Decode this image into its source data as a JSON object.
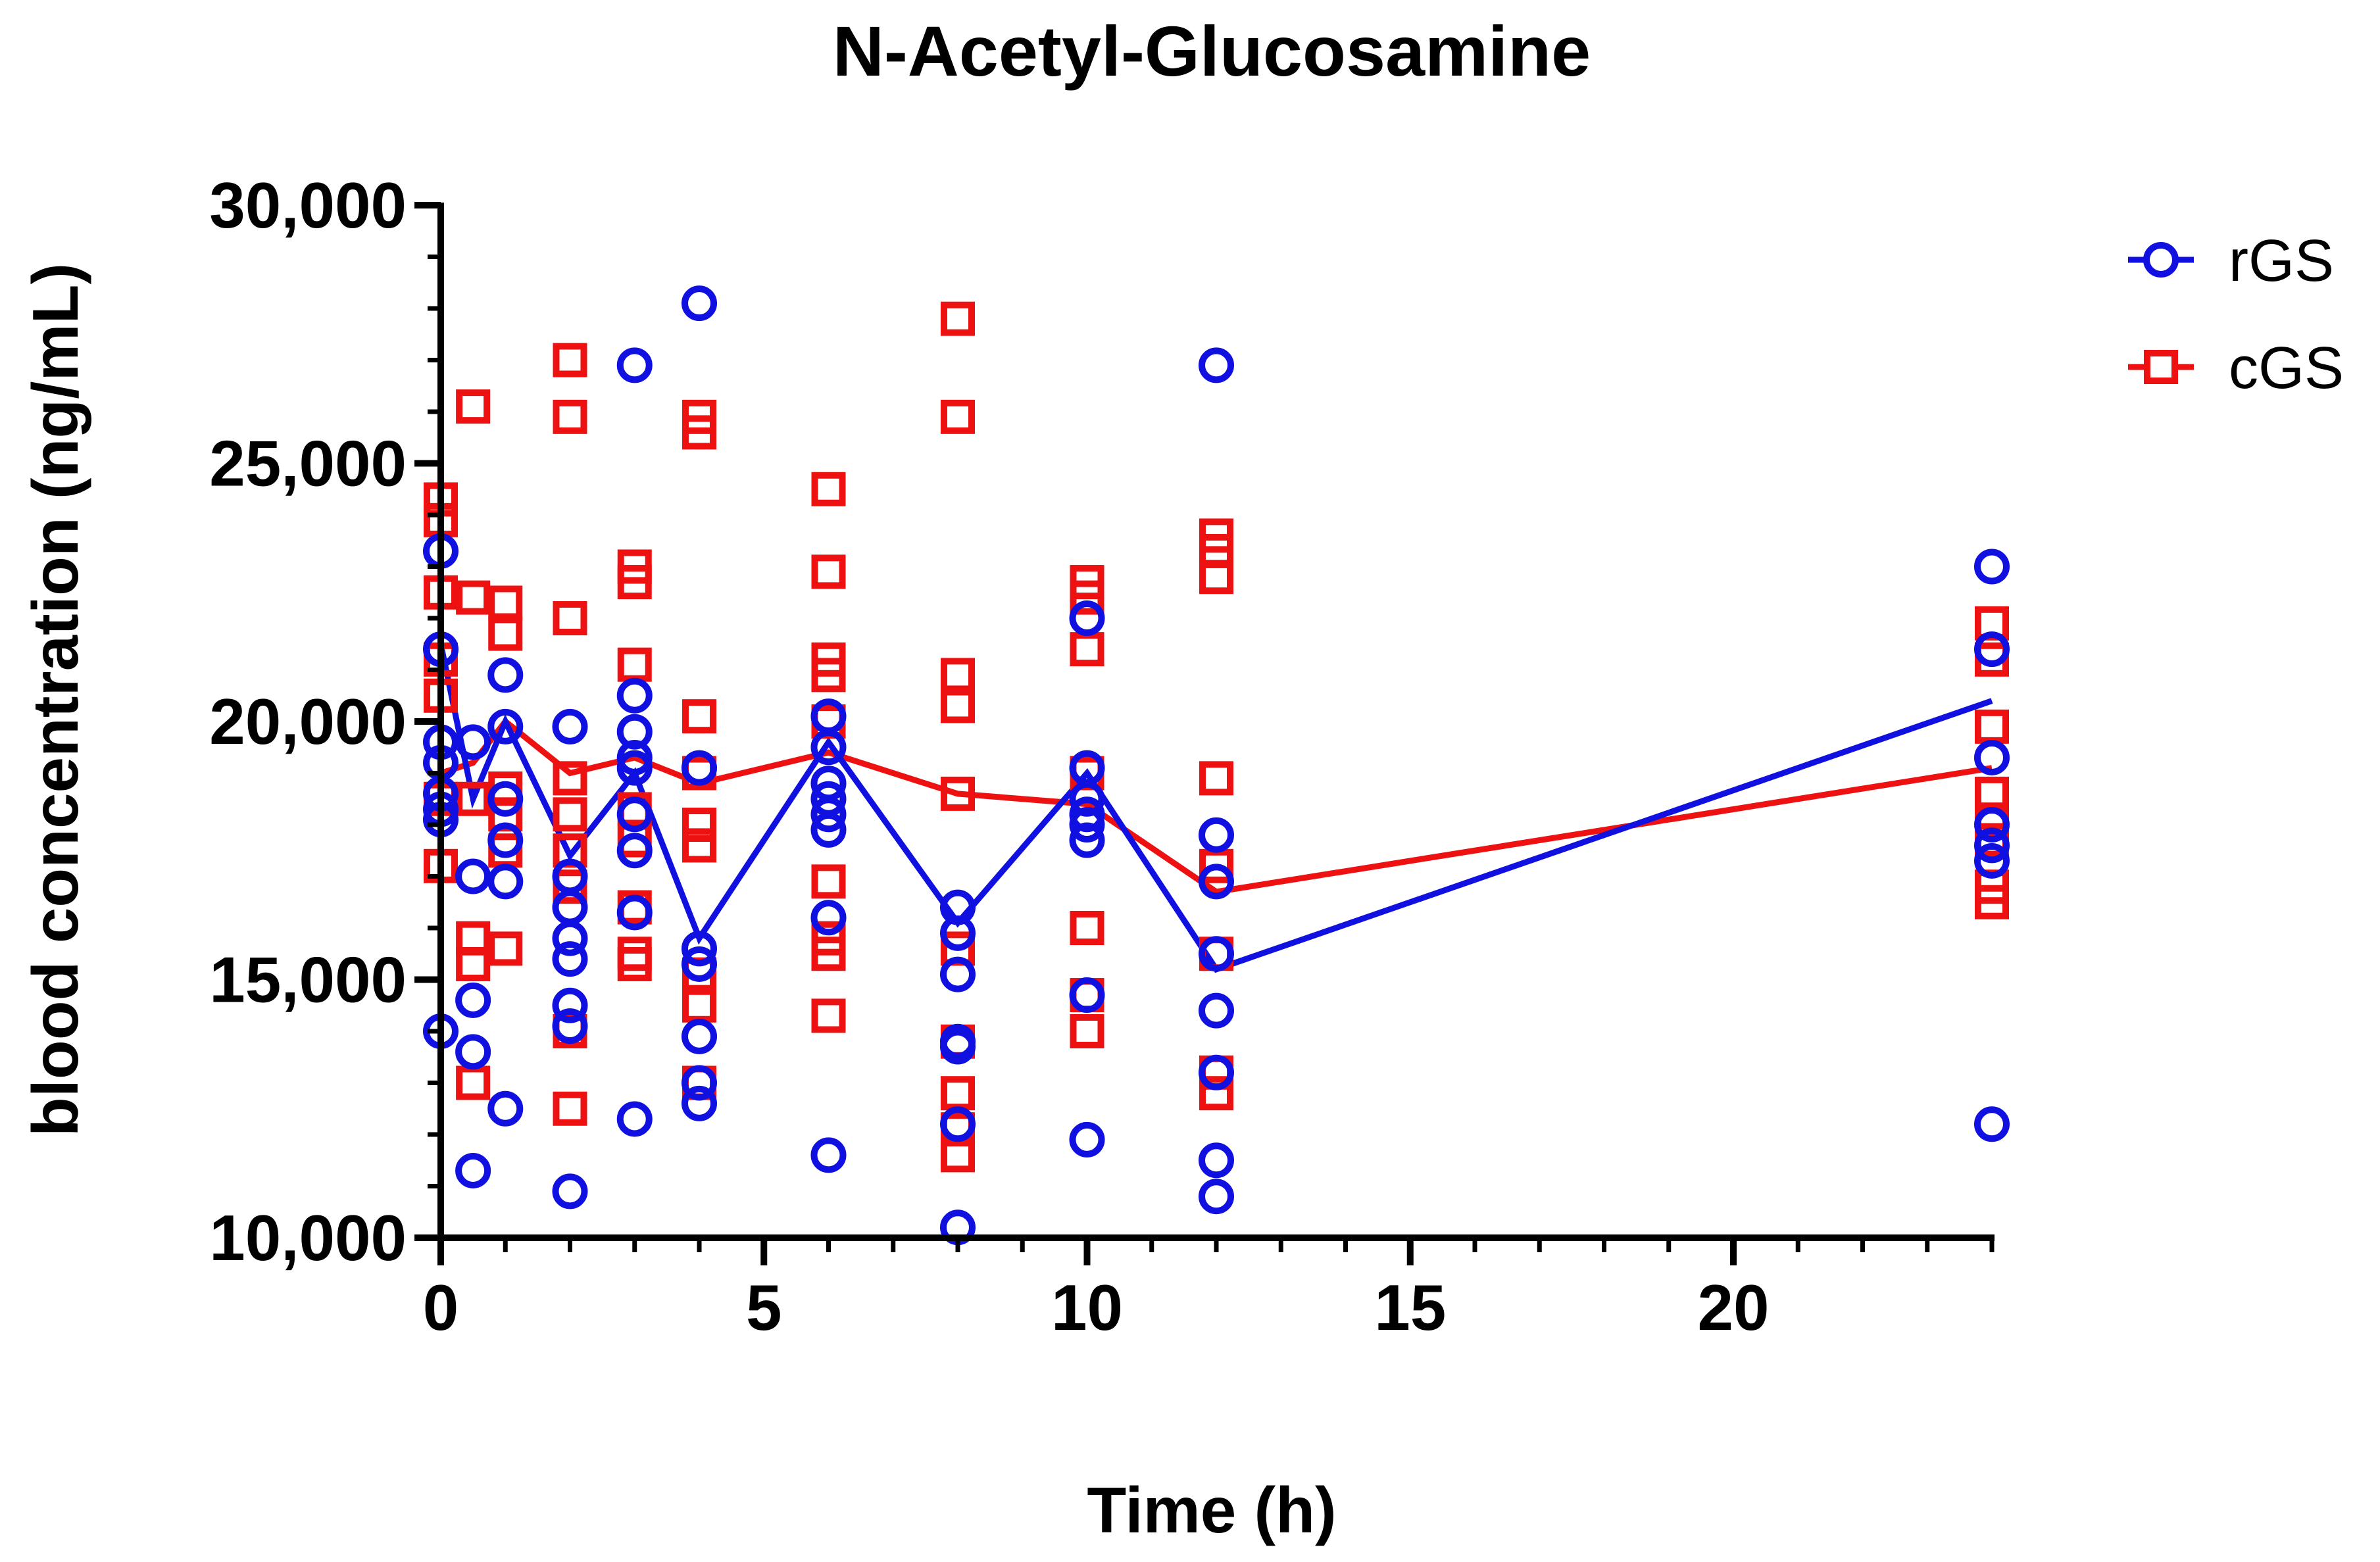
{
  "chart_data": {
    "type": "scatter",
    "title": "N-Acetyl-Glucosamine",
    "xlabel": "Time (h)",
    "ylabel": "blood concentration (ng/mL)",
    "xlim": [
      0,
      24
    ],
    "ylim": [
      10000,
      30000
    ],
    "x_ticks": [
      0,
      5,
      10,
      15,
      20
    ],
    "x_tick_labels": [
      "0",
      "5",
      "10",
      "15",
      "20"
    ],
    "y_ticks": [
      10000,
      15000,
      20000,
      25000,
      30000
    ],
    "y_tick_labels": [
      "10,000",
      "15,000",
      "20,000",
      "25,000",
      "30,000"
    ],
    "legend_position": "top-right",
    "grid": false,
    "series": [
      {
        "name": "rGS",
        "color": "#1010e0",
        "marker": "circle",
        "mean_line": [
          {
            "x": 0,
            "y": 21500
          },
          {
            "x": 0.5,
            "y": 18500
          },
          {
            "x": 1,
            "y": 20000
          },
          {
            "x": 2,
            "y": 17400
          },
          {
            "x": 3,
            "y": 19000
          },
          {
            "x": 4,
            "y": 15800
          },
          {
            "x": 6,
            "y": 19600
          },
          {
            "x": 8,
            "y": 16100
          },
          {
            "x": 10,
            "y": 19000
          },
          {
            "x": 12,
            "y": 15200
          },
          {
            "x": 24,
            "y": 20400
          }
        ],
        "points": [
          {
            "x": 0,
            "y": 23300
          },
          {
            "x": 0,
            "y": 21400
          },
          {
            "x": 0,
            "y": 19600
          },
          {
            "x": 0,
            "y": 19200
          },
          {
            "x": 0,
            "y": 18600
          },
          {
            "x": 0,
            "y": 18300
          },
          {
            "x": 0,
            "y": 18100
          },
          {
            "x": 0,
            "y": 14000
          },
          {
            "x": 0.5,
            "y": 19600
          },
          {
            "x": 0.5,
            "y": 17000
          },
          {
            "x": 0.5,
            "y": 14600
          },
          {
            "x": 0.5,
            "y": 13600
          },
          {
            "x": 0.5,
            "y": 11300
          },
          {
            "x": 1,
            "y": 20900
          },
          {
            "x": 1,
            "y": 19900
          },
          {
            "x": 1,
            "y": 18500
          },
          {
            "x": 1,
            "y": 17700
          },
          {
            "x": 1,
            "y": 16900
          },
          {
            "x": 1,
            "y": 12500
          },
          {
            "x": 2,
            "y": 19900
          },
          {
            "x": 2,
            "y": 17000
          },
          {
            "x": 2,
            "y": 16400
          },
          {
            "x": 2,
            "y": 15800
          },
          {
            "x": 2,
            "y": 15400
          },
          {
            "x": 2,
            "y": 14500
          },
          {
            "x": 2,
            "y": 14100
          },
          {
            "x": 2,
            "y": 10900
          },
          {
            "x": 3,
            "y": 26900
          },
          {
            "x": 3,
            "y": 20500
          },
          {
            "x": 3,
            "y": 19800
          },
          {
            "x": 3,
            "y": 19300
          },
          {
            "x": 3,
            "y": 19100
          },
          {
            "x": 3,
            "y": 18200
          },
          {
            "x": 3,
            "y": 17500
          },
          {
            "x": 3,
            "y": 16300
          },
          {
            "x": 3,
            "y": 12300
          },
          {
            "x": 4,
            "y": 28100
          },
          {
            "x": 4,
            "y": 19100
          },
          {
            "x": 4,
            "y": 15600
          },
          {
            "x": 4,
            "y": 15300
          },
          {
            "x": 4,
            "y": 13900
          },
          {
            "x": 4,
            "y": 13000
          },
          {
            "x": 4,
            "y": 12600
          },
          {
            "x": 6,
            "y": 20100
          },
          {
            "x": 6,
            "y": 19500
          },
          {
            "x": 6,
            "y": 18800
          },
          {
            "x": 6,
            "y": 18500
          },
          {
            "x": 6,
            "y": 18200
          },
          {
            "x": 6,
            "y": 17900
          },
          {
            "x": 6,
            "y": 16200
          },
          {
            "x": 6,
            "y": 11600
          },
          {
            "x": 8,
            "y": 16400
          },
          {
            "x": 8,
            "y": 15900
          },
          {
            "x": 8,
            "y": 15100
          },
          {
            "x": 8,
            "y": 13800
          },
          {
            "x": 8,
            "y": 13700
          },
          {
            "x": 8,
            "y": 12200
          },
          {
            "x": 8,
            "y": 10200
          },
          {
            "x": 10,
            "y": 22000
          },
          {
            "x": 10,
            "y": 19100
          },
          {
            "x": 10,
            "y": 18500
          },
          {
            "x": 10,
            "y": 18200
          },
          {
            "x": 10,
            "y": 18000
          },
          {
            "x": 10,
            "y": 17700
          },
          {
            "x": 10,
            "y": 14700
          },
          {
            "x": 10,
            "y": 11900
          },
          {
            "x": 12,
            "y": 26900
          },
          {
            "x": 12,
            "y": 17800
          },
          {
            "x": 12,
            "y": 16900
          },
          {
            "x": 12,
            "y": 15500
          },
          {
            "x": 12,
            "y": 14400
          },
          {
            "x": 12,
            "y": 13200
          },
          {
            "x": 12,
            "y": 11500
          },
          {
            "x": 12,
            "y": 10800
          },
          {
            "x": 24,
            "y": 23000
          },
          {
            "x": 24,
            "y": 21400
          },
          {
            "x": 24,
            "y": 19300
          },
          {
            "x": 24,
            "y": 18000
          },
          {
            "x": 24,
            "y": 17600
          },
          {
            "x": 24,
            "y": 17300
          },
          {
            "x": 24,
            "y": 12200
          }
        ]
      },
      {
        "name": "cGS",
        "color": "#ee1111",
        "marker": "square",
        "mean_line": [
          {
            "x": 0,
            "y": 19000
          },
          {
            "x": 0.5,
            "y": 19200
          },
          {
            "x": 1,
            "y": 20000
          },
          {
            "x": 2,
            "y": 19000
          },
          {
            "x": 3,
            "y": 19300
          },
          {
            "x": 4,
            "y": 18800
          },
          {
            "x": 6,
            "y": 19400
          },
          {
            "x": 8,
            "y": 18600
          },
          {
            "x": 10,
            "y": 18400
          },
          {
            "x": 12,
            "y": 16700
          },
          {
            "x": 24,
            "y": 19100
          }
        ],
        "points": [
          {
            "x": 0,
            "y": 24300
          },
          {
            "x": 0,
            "y": 23900
          },
          {
            "x": 0,
            "y": 22500
          },
          {
            "x": 0,
            "y": 21200
          },
          {
            "x": 0,
            "y": 20500
          },
          {
            "x": 0,
            "y": 18500
          },
          {
            "x": 0,
            "y": 17200
          },
          {
            "x": 0.5,
            "y": 26100
          },
          {
            "x": 0.5,
            "y": 22400
          },
          {
            "x": 0.5,
            "y": 18500
          },
          {
            "x": 0.5,
            "y": 15800
          },
          {
            "x": 0.5,
            "y": 15300
          },
          {
            "x": 0.5,
            "y": 13000
          },
          {
            "x": 1,
            "y": 22300
          },
          {
            "x": 1,
            "y": 21700
          },
          {
            "x": 1,
            "y": 18700
          },
          {
            "x": 1,
            "y": 18200
          },
          {
            "x": 1,
            "y": 17500
          },
          {
            "x": 1,
            "y": 15600
          },
          {
            "x": 2,
            "y": 27000
          },
          {
            "x": 2,
            "y": 25900
          },
          {
            "x": 2,
            "y": 22000
          },
          {
            "x": 2,
            "y": 18900
          },
          {
            "x": 2,
            "y": 18200
          },
          {
            "x": 2,
            "y": 17500
          },
          {
            "x": 2,
            "y": 16800
          },
          {
            "x": 2,
            "y": 14000
          },
          {
            "x": 2,
            "y": 12500
          },
          {
            "x": 3,
            "y": 23000
          },
          {
            "x": 3,
            "y": 22700
          },
          {
            "x": 3,
            "y": 21100
          },
          {
            "x": 3,
            "y": 18300
          },
          {
            "x": 3,
            "y": 17700
          },
          {
            "x": 3,
            "y": 16400
          },
          {
            "x": 3,
            "y": 15500
          },
          {
            "x": 3,
            "y": 15300
          },
          {
            "x": 4,
            "y": 25900
          },
          {
            "x": 4,
            "y": 25600
          },
          {
            "x": 4,
            "y": 20100
          },
          {
            "x": 4,
            "y": 19000
          },
          {
            "x": 4,
            "y": 18000
          },
          {
            "x": 4,
            "y": 17600
          },
          {
            "x": 4,
            "y": 15100
          },
          {
            "x": 4,
            "y": 14500
          },
          {
            "x": 4,
            "y": 13000
          },
          {
            "x": 6,
            "y": 24500
          },
          {
            "x": 6,
            "y": 22900
          },
          {
            "x": 6,
            "y": 21200
          },
          {
            "x": 6,
            "y": 20900
          },
          {
            "x": 6,
            "y": 20000
          },
          {
            "x": 6,
            "y": 16900
          },
          {
            "x": 6,
            "y": 15800
          },
          {
            "x": 6,
            "y": 15500
          },
          {
            "x": 6,
            "y": 14300
          },
          {
            "x": 8,
            "y": 27800
          },
          {
            "x": 8,
            "y": 25900
          },
          {
            "x": 8,
            "y": 20900
          },
          {
            "x": 8,
            "y": 20300
          },
          {
            "x": 8,
            "y": 18600
          },
          {
            "x": 8,
            "y": 15600
          },
          {
            "x": 8,
            "y": 13800
          },
          {
            "x": 8,
            "y": 12800
          },
          {
            "x": 8,
            "y": 12100
          },
          {
            "x": 8,
            "y": 11600
          },
          {
            "x": 10,
            "y": 22700
          },
          {
            "x": 10,
            "y": 22400
          },
          {
            "x": 10,
            "y": 21400
          },
          {
            "x": 10,
            "y": 19000
          },
          {
            "x": 10,
            "y": 16000
          },
          {
            "x": 10,
            "y": 14700
          },
          {
            "x": 10,
            "y": 14000
          },
          {
            "x": 12,
            "y": 23600
          },
          {
            "x": 12,
            "y": 23300
          },
          {
            "x": 12,
            "y": 22800
          },
          {
            "x": 12,
            "y": 18900
          },
          {
            "x": 12,
            "y": 17200
          },
          {
            "x": 12,
            "y": 15500
          },
          {
            "x": 12,
            "y": 13200
          },
          {
            "x": 12,
            "y": 12800
          },
          {
            "x": 24,
            "y": 21900
          },
          {
            "x": 24,
            "y": 21200
          },
          {
            "x": 24,
            "y": 19900
          },
          {
            "x": 24,
            "y": 18600
          },
          {
            "x": 24,
            "y": 18100
          },
          {
            "x": 24,
            "y": 17700
          },
          {
            "x": 24,
            "y": 16800
          },
          {
            "x": 24,
            "y": 16500
          }
        ]
      }
    ]
  }
}
